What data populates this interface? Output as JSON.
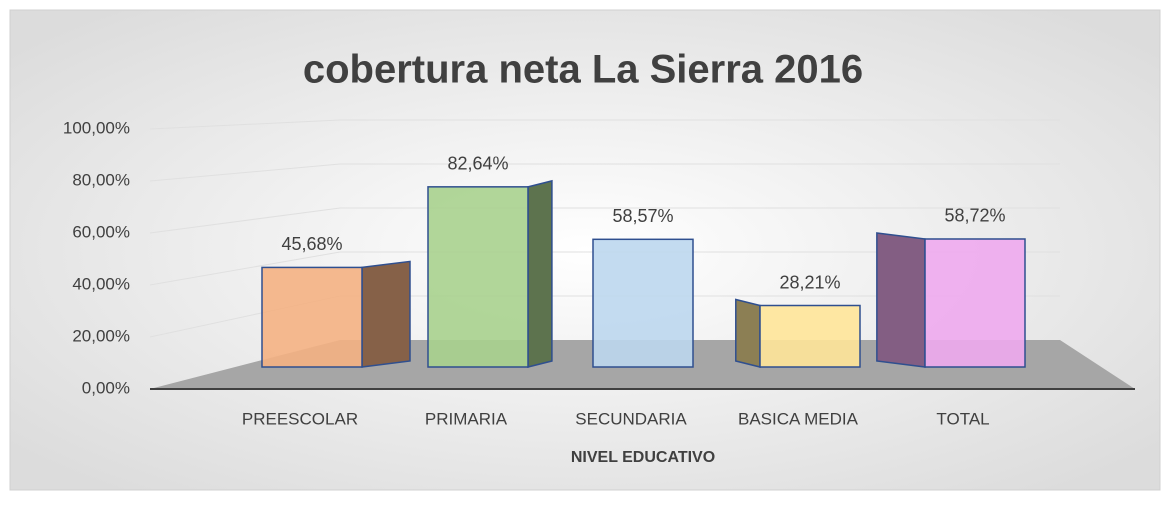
{
  "chart_data": {
    "type": "bar3d",
    "title": "cobertura neta La Sierra 2016",
    "x_label": "NIVEL EDUCATIVO",
    "categories": [
      "PREESCOLAR",
      "PRIMARIA",
      "SECUNDARIA",
      "BASICA MEDIA",
      "TOTAL"
    ],
    "values": [
      45.68,
      82.64,
      58.57,
      28.21,
      58.72
    ],
    "value_labels": [
      "45,68%",
      "82,64%",
      "58,57%",
      "28,21%",
      "58,72%"
    ],
    "colors": [
      "#f4b183",
      "#a9d18e",
      "#bdd7ee",
      "#ffe699",
      "#eeaaee"
    ],
    "ylim": [
      0,
      100
    ],
    "yticks": [
      {
        "value": 0,
        "label": "0,00%"
      },
      {
        "value": 20,
        "label": "20,00%"
      },
      {
        "value": 40,
        "label": "40,00%"
      },
      {
        "value": 60,
        "label": "60,00%"
      },
      {
        "value": 80,
        "label": "80,00%"
      },
      {
        "value": 100,
        "label": "100,00%"
      }
    ],
    "grid": true
  }
}
